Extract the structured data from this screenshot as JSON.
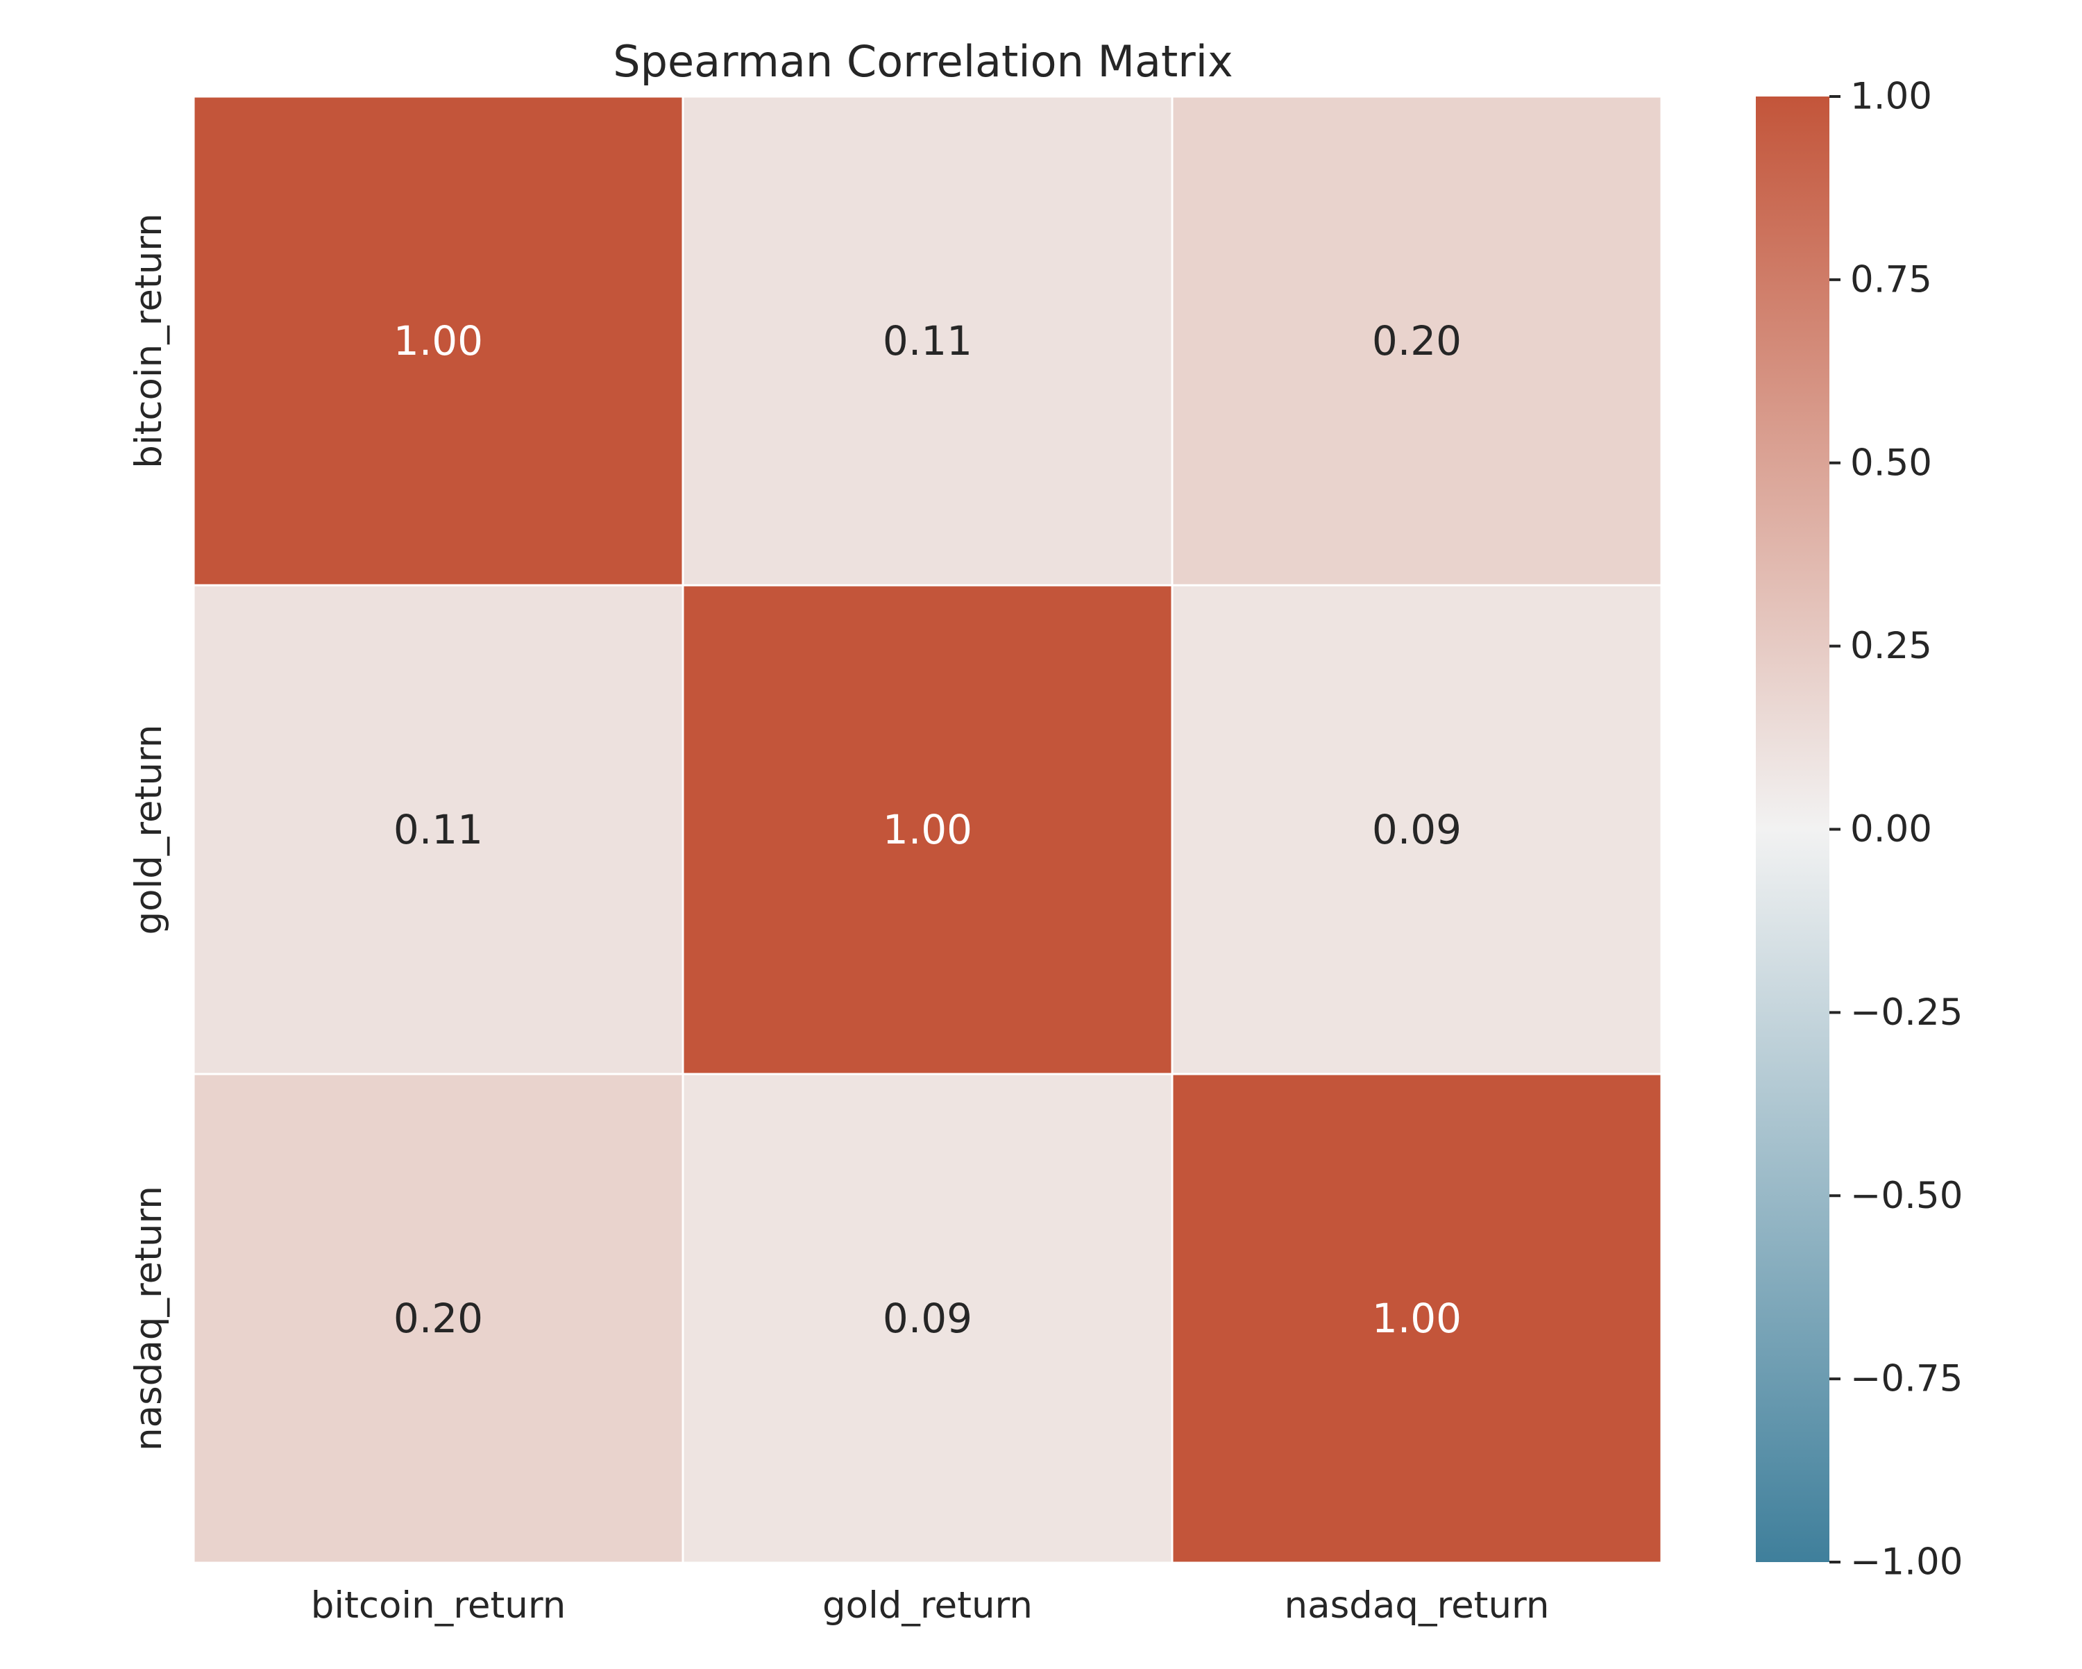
{
  "chart_data": {
    "type": "heatmap",
    "title": "Spearman Correlation Matrix",
    "row_labels": [
      "bitcoin_return",
      "gold_return",
      "nasdaq_return"
    ],
    "col_labels": [
      "bitcoin_return",
      "gold_return",
      "nasdaq_return"
    ],
    "values": [
      [
        1.0,
        0.11,
        0.2
      ],
      [
        0.11,
        1.0,
        0.09
      ],
      [
        0.2,
        0.09,
        1.0
      ]
    ],
    "cell_labels": [
      [
        "1.00",
        "0.11",
        "0.20"
      ],
      [
        "0.11",
        "1.00",
        "0.09"
      ],
      [
        "0.20",
        "0.09",
        "1.00"
      ]
    ],
    "colorbar": {
      "range": [
        -1.0,
        1.0
      ],
      "ticks": [
        1.0,
        0.75,
        0.5,
        0.25,
        0.0,
        -0.25,
        -0.5,
        -0.75,
        -1.0
      ],
      "tick_labels": [
        "1.00",
        "0.75",
        "0.50",
        "0.25",
        "0.00",
        "−0.25",
        "−0.50",
        "−0.75",
        "−1.00"
      ],
      "colors": {
        "low": "#3f7f9b",
        "mid": "#f2f2f2",
        "high": "#c3553a"
      }
    },
    "xlabel": "",
    "ylabel": "",
    "grid": false,
    "legend": "colorbar-right"
  }
}
